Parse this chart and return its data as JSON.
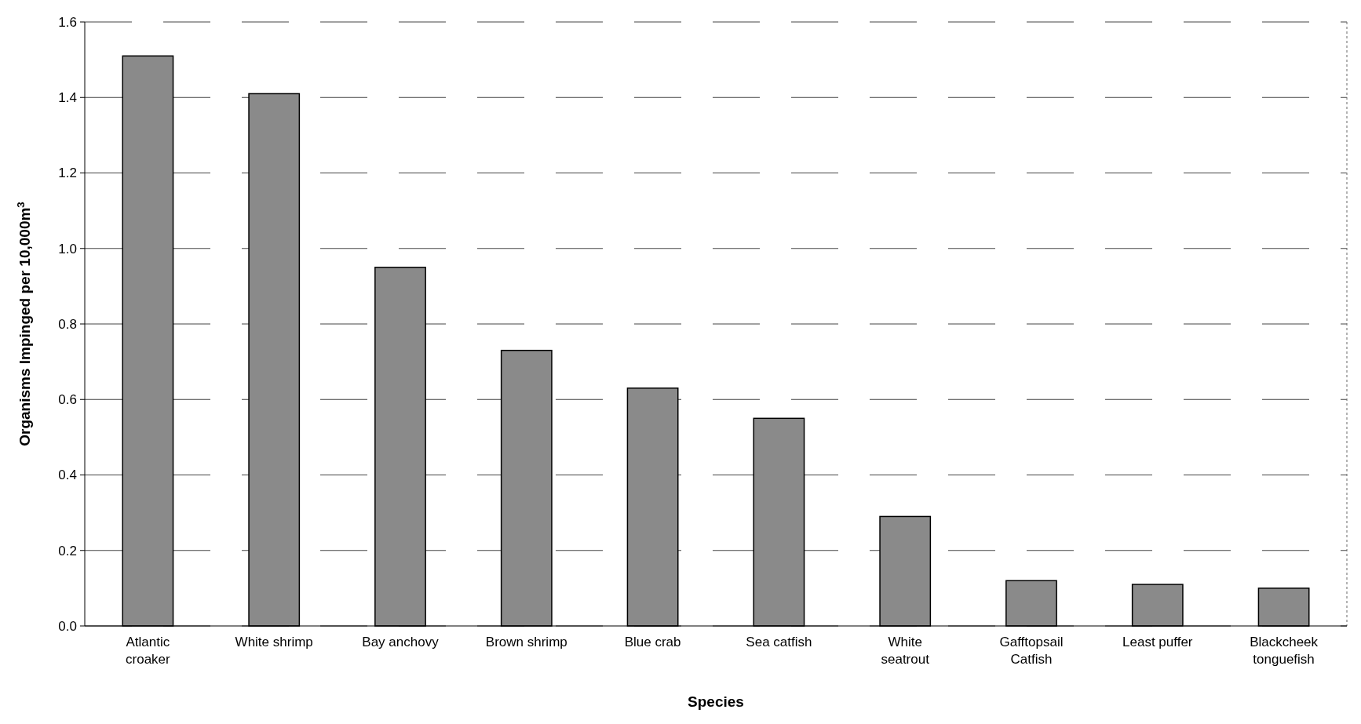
{
  "chart_data": {
    "type": "bar",
    "xlabel": "Species",
    "ylabel": "Organisms Impinged per 10,000m$^{3}$",
    "categories": [
      "Atlantic croaker",
      "White shrimp",
      "Bay anchovy",
      "Brown shrimp",
      "Blue crab",
      "Sea catfish",
      "White seatrout",
      "Gafftopsail Catfish",
      "Least puffer",
      "Blackcheek tonguefish"
    ],
    "values": [
      1.51,
      1.41,
      0.95,
      0.73,
      0.63,
      0.55,
      0.29,
      0.12,
      0.11,
      0.1
    ],
    "color": "#8a8a8a",
    "ylim": [
      0,
      1.6
    ],
    "yticks": [
      {
        "value": 0,
        "label": "0.0"
      },
      {
        "value": 0.2,
        "label": "0.2"
      },
      {
        "value": 0.4,
        "label": "0.4"
      },
      {
        "value": 0.6,
        "label": "0.6"
      },
      {
        "value": 0.8,
        "label": "0.8"
      },
      {
        "value": 1,
        "label": "1.0"
      },
      {
        "value": 1.2,
        "label": "1.2"
      },
      {
        "value": 1.4,
        "label": "1.4"
      },
      {
        "value": 1.6,
        "label": "1.6"
      }
    ],
    "grid": "y"
  }
}
